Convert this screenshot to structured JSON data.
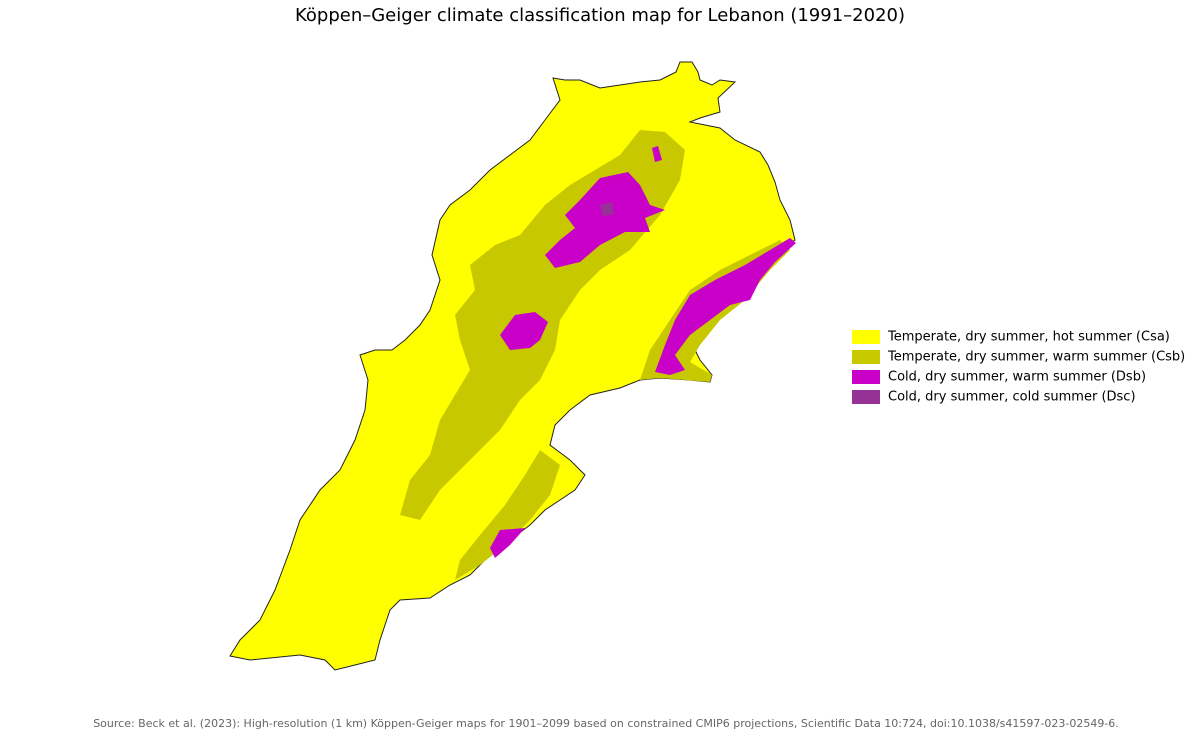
{
  "title": "Köppen–Geiger climate classification map for Lebanon (1991–2020)",
  "legend": [
    {
      "label": "Temperate, dry summer, hot summer (Csa)",
      "color": "#ffff00"
    },
    {
      "label": "Temperate, dry summer, warm summer (Csb)",
      "color": "#c8c800"
    },
    {
      "label": "Cold, dry summer, warm summer (Dsb)",
      "color": "#c800c8"
    },
    {
      "label": "Cold, dry summer, cold summer (Dsc)",
      "color": "#963296"
    }
  ],
  "source": "Source: Beck et al. (2023): High-resolution (1 km) Köppen-Geiger maps for 1901–2099 based on constrained CMIP6 projections, Scientific Data 10:724, doi:10.1038/s41597-023-02549-6."
}
